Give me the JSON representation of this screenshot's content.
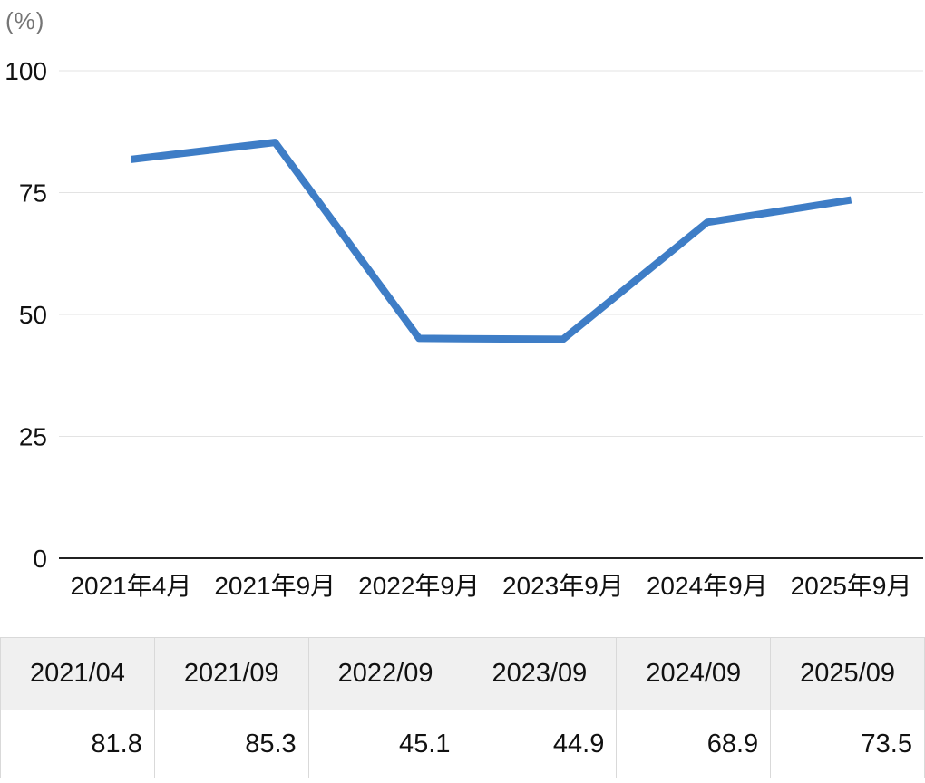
{
  "chart": {
    "unit_label": "(%)",
    "line_color": "#3e7dc6",
    "grid_color": "#e3e3e3",
    "baseline_color": "#212121",
    "axis_text_color": "#111111"
  },
  "chart_data": {
    "type": "line",
    "categories": [
      "2021年4月",
      "2021年9月",
      "2022年9月",
      "2023年9月",
      "2024年9月",
      "2025年9月"
    ],
    "values": [
      81.8,
      85.3,
      45.1,
      44.9,
      68.9,
      73.5
    ],
    "title": "",
    "xlabel": "",
    "ylabel": "(%)",
    "ylim": [
      0,
      100
    ],
    "y_ticks": [
      0,
      25,
      50,
      75,
      100
    ],
    "grid": true,
    "legend": "none"
  },
  "table": {
    "columns": [
      "2021/04",
      "2021/09",
      "2022/09",
      "2023/09",
      "2024/09",
      "2025/09"
    ],
    "values": [
      "81.8",
      "85.3",
      "45.1",
      "44.9",
      "68.9",
      "73.5"
    ]
  }
}
